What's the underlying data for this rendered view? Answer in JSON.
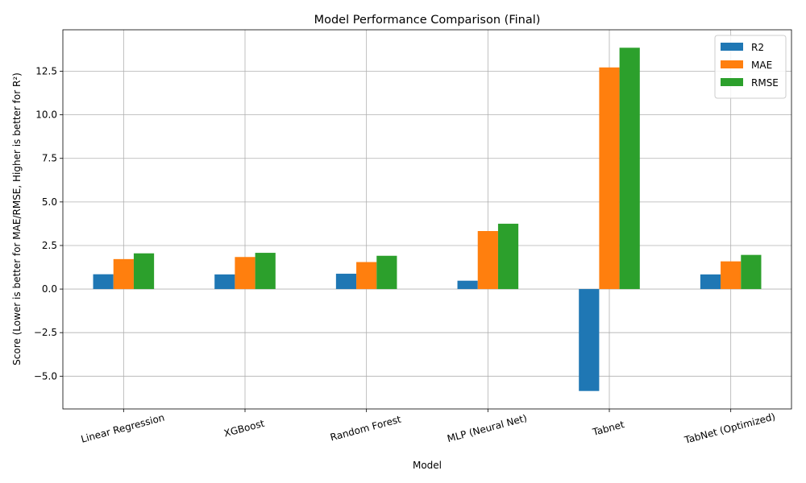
{
  "chart_data": {
    "type": "bar",
    "title": "Model Performance Comparison (Final)",
    "xlabel": "Model",
    "ylabel": "Score (Lower is better for MAE/RMSE, Higher is better for R²)",
    "categories": [
      "Linear Regression",
      "XGBoost",
      "Random Forest",
      "MLP (Neural Net)",
      "Tabnet",
      "TabNet (Optimized)"
    ],
    "series": [
      {
        "name": "R2",
        "color": "#1f77b4",
        "values": [
          0.85,
          0.84,
          0.88,
          0.48,
          -5.85,
          0.84
        ]
      },
      {
        "name": "MAE",
        "color": "#ff7f0e",
        "values": [
          1.72,
          1.84,
          1.55,
          3.33,
          12.72,
          1.59
        ]
      },
      {
        "name": "RMSE",
        "color": "#2ca02c",
        "values": [
          2.05,
          2.08,
          1.91,
          3.75,
          13.85,
          1.96
        ]
      }
    ],
    "yticks": [
      "−5.0",
      "−2.5",
      "0.0",
      "2.5",
      "5.0",
      "7.5",
      "10.0",
      "12.5"
    ],
    "ytick_values": [
      -5.0,
      -2.5,
      0.0,
      2.5,
      5.0,
      7.5,
      10.0,
      12.5
    ],
    "ylim": [
      -6.88,
      14.88
    ],
    "grid": true,
    "legend_position": "top-right",
    "xtick_rotation_deg": -15
  }
}
